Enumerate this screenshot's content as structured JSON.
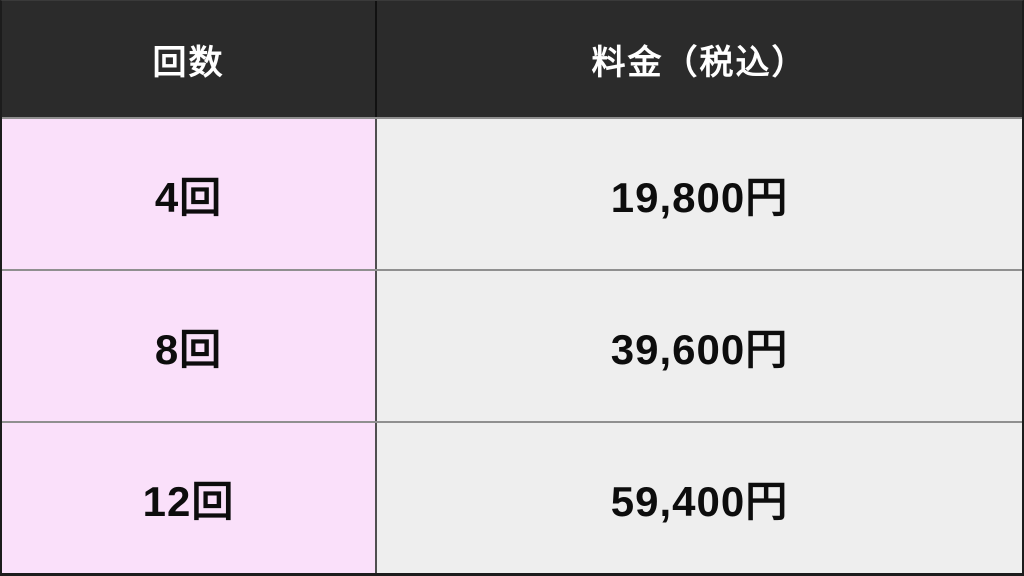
{
  "table": {
    "columns": [
      {
        "label": "回数"
      },
      {
        "label": "料金（税込）"
      }
    ],
    "rows": [
      {
        "count": "4回",
        "price": "19,800円"
      },
      {
        "count": "8回",
        "price": "39,600円"
      },
      {
        "count": "12回",
        "price": "59,400円"
      }
    ]
  },
  "colors": {
    "header_bg": "#2b2b2b",
    "header_text": "#ffffff",
    "count_column_bg": "#fae0fa",
    "price_column_bg": "#eeeeee",
    "outer_border": "#1c1c1c",
    "row_divider": "#8f8b90",
    "column_divider": "#4f4f4f",
    "body_text": "#0d0d0d"
  }
}
